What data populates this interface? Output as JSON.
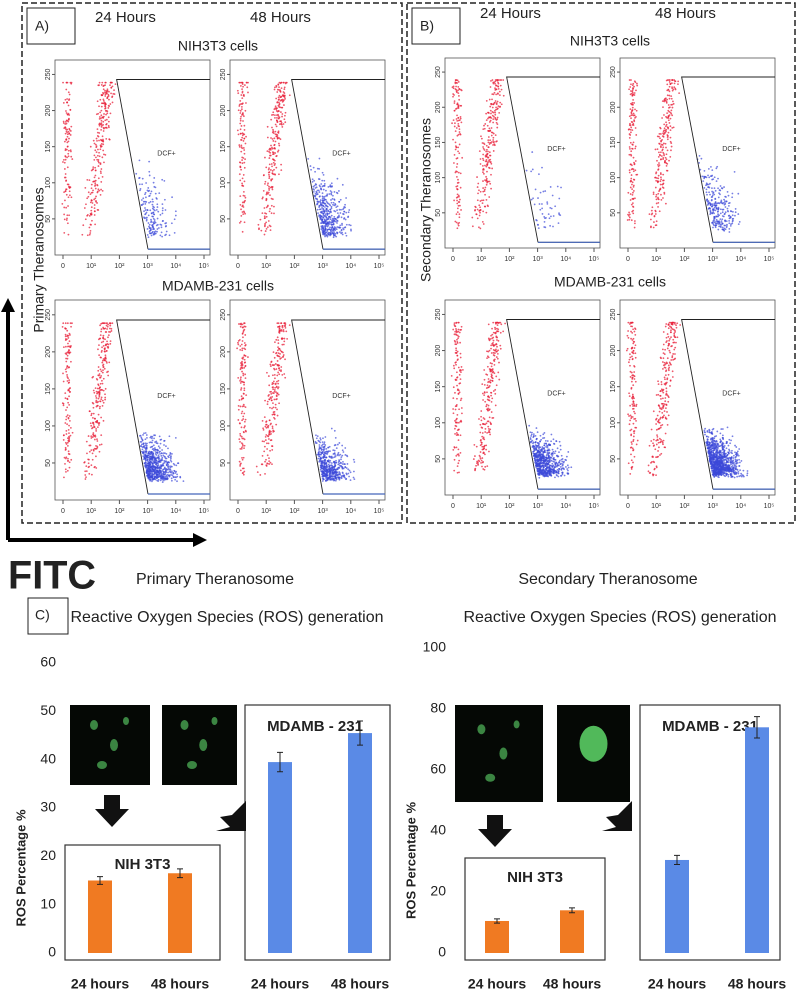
{
  "panels": {
    "a": {
      "label": "A)",
      "ylabel": "Primary Theranosomes"
    },
    "b": {
      "label": "B)",
      "ylabel": "Secondary Theranosomes"
    },
    "c": {
      "label": "C)"
    }
  },
  "flow": {
    "times": [
      "24 Hours",
      "48 Hours"
    ],
    "cells": [
      "NIH3T3 cells",
      "MDAMB-231 cells"
    ],
    "gate": "DCF+",
    "yticks": [
      50,
      100,
      150,
      200,
      250
    ],
    "xticks": [
      "0",
      "10¹",
      "10²",
      "10³",
      "10⁴",
      "10⁵"
    ]
  },
  "x_axis_label": "FITC",
  "chart_data": [
    {
      "type": "bar",
      "title": "Primary Theranosome",
      "subtitle": "Reactive Oxygen Species (ROS) generation",
      "ylabel": "ROS Percentage %",
      "ylim": [
        0,
        60
      ],
      "yticks": [
        0,
        10,
        20,
        30,
        40,
        50,
        60
      ],
      "groups": [
        {
          "name": "NIH 3T3",
          "color": "#f07a22",
          "categories": [
            "24 hours",
            "48 hours"
          ],
          "values": [
            15,
            16.5
          ],
          "errors": [
            0.8,
            0.9
          ]
        },
        {
          "name": "MDAMB - 231",
          "color": "#5a8ae6",
          "categories": [
            "24 hours",
            "48 hours"
          ],
          "values": [
            39.5,
            45.5
          ],
          "errors": [
            2,
            2.5
          ]
        }
      ]
    },
    {
      "type": "bar",
      "title": "Secondary Theranosome",
      "subtitle": "Reactive Oxygen Species (ROS) generation",
      "ylabel": "ROS Percentage %",
      "ylim": [
        0,
        100
      ],
      "yticks": [
        0,
        20,
        40,
        60,
        80,
        100
      ],
      "groups": [
        {
          "name": "NIH 3T3",
          "color": "#f07a22",
          "categories": [
            "24 hours",
            "48 hours"
          ],
          "values": [
            10.5,
            14
          ],
          "errors": [
            0.7,
            0.8
          ]
        },
        {
          "name": "MDAMB - 231",
          "color": "#5a8ae6",
          "categories": [
            "24 hours",
            "48 hours"
          ],
          "values": [
            30.5,
            74
          ],
          "errors": [
            1.5,
            3.5
          ]
        }
      ]
    }
  ]
}
